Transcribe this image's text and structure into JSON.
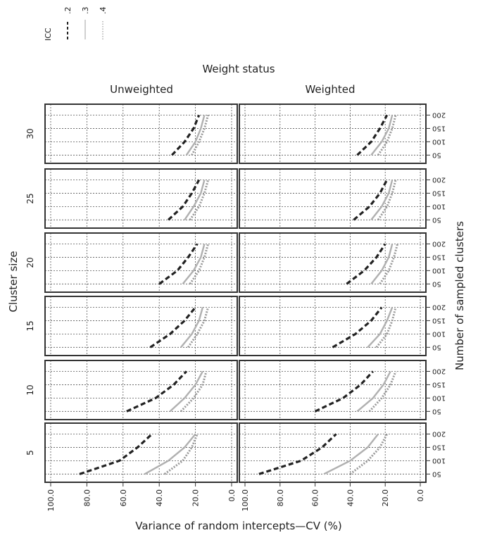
{
  "chart_data": {
    "type": "line",
    "title": "Weight status",
    "xlabel": "Variance of random intercepts—CV (%)",
    "ylabel": "Cluster size",
    "ylabel_right": "Number of sampled clusters",
    "x_ticks": [
      "100.0",
      "80.0",
      "60.0",
      "40.0",
      "20.0",
      "0.0"
    ],
    "xlim": [
      100,
      0
    ],
    "y_ticks": [
      "50",
      "100",
      "150",
      "200"
    ],
    "ylim": [
      35,
      225
    ],
    "grid": true,
    "legend": {
      "title": "ICC",
      "position": "top-left",
      "entries": [
        {
          "label": ".2",
          "style": "dashed",
          "color": "#222222"
        },
        {
          "label": ".3",
          "style": "solid",
          "color": "#b0b0b0"
        },
        {
          "label": ".4",
          "style": "dotted",
          "color": "#9a9a9a"
        }
      ]
    },
    "columns": [
      "Unweighted",
      "Weighted"
    ],
    "rows": [
      "30",
      "25",
      "20",
      "15",
      "10",
      "5"
    ],
    "y": [
      50,
      100,
      150,
      200
    ],
    "panels": [
      {
        "row": "30",
        "column": "Unweighted",
        "series": [
          {
            "name": ".2",
            "x": [
              33,
              26,
              21,
              18
            ]
          },
          {
            "name": ".3",
            "x": [
              25,
              20,
              17,
              15
            ]
          },
          {
            "name": ".4",
            "x": [
              22,
              18,
              15,
              13
            ]
          }
        ]
      },
      {
        "row": "30",
        "column": "Weighted",
        "series": [
          {
            "name": ".2",
            "x": [
              36,
              28,
              23,
              19
            ]
          },
          {
            "name": ".3",
            "x": [
              28,
              22,
              18,
              16
            ]
          },
          {
            "name": ".4",
            "x": [
              24,
              19,
              16,
              14
            ]
          }
        ]
      },
      {
        "row": "25",
        "column": "Unweighted",
        "series": [
          {
            "name": ".2",
            "x": [
              35,
              27,
              22,
              18
            ]
          },
          {
            "name": ".3",
            "x": [
              26,
              21,
              17,
              15
            ]
          },
          {
            "name": ".4",
            "x": [
              23,
              18,
              15,
              13
            ]
          }
        ]
      },
      {
        "row": "25",
        "column": "Weighted",
        "series": [
          {
            "name": ".2",
            "x": [
              38,
              29,
              23,
              19
            ]
          },
          {
            "name": ".3",
            "x": [
              28,
              22,
              18,
              16
            ]
          },
          {
            "name": ".4",
            "x": [
              24,
              19,
              16,
              14
            ]
          }
        ]
      },
      {
        "row": "20",
        "column": "Unweighted",
        "series": [
          {
            "name": ".2",
            "x": [
              40,
              30,
              24,
              19
            ]
          },
          {
            "name": ".3",
            "x": [
              27,
              21,
              17,
              15
            ]
          },
          {
            "name": ".4",
            "x": [
              23,
              18,
              15,
              13
            ]
          }
        ]
      },
      {
        "row": "20",
        "column": "Weighted",
        "series": [
          {
            "name": ".2",
            "x": [
              42,
              32,
              25,
              20
            ]
          },
          {
            "name": ".3",
            "x": [
              28,
              22,
              18,
              16
            ]
          },
          {
            "name": ".4",
            "x": [
              23,
              18,
              15,
              13
            ]
          }
        ]
      },
      {
        "row": "15",
        "column": "Unweighted",
        "series": [
          {
            "name": ".2",
            "x": [
              45,
              34,
              26,
              20
            ]
          },
          {
            "name": ".3",
            "x": [
              28,
              22,
              18,
              16
            ]
          },
          {
            "name": ".4",
            "x": [
              24,
              19,
              15,
              13
            ]
          }
        ]
      },
      {
        "row": "15",
        "column": "Weighted",
        "series": [
          {
            "name": ".2",
            "x": [
              50,
              37,
              28,
              22
            ]
          },
          {
            "name": ".3",
            "x": [
              30,
              23,
              19,
              16
            ]
          },
          {
            "name": ".4",
            "x": [
              25,
              19,
              16,
              14
            ]
          }
        ]
      },
      {
        "row": "10",
        "column": "Unweighted",
        "series": [
          {
            "name": ".2",
            "x": [
              58,
              42,
              32,
              25
            ]
          },
          {
            "name": ".3",
            "x": [
              34,
              26,
              20,
              16
            ]
          },
          {
            "name": ".4",
            "x": [
              28,
              21,
              16,
              14
            ]
          }
        ]
      },
      {
        "row": "10",
        "column": "Weighted",
        "series": [
          {
            "name": ".2",
            "x": [
              60,
              44,
              34,
              27
            ]
          },
          {
            "name": ".3",
            "x": [
              36,
              27,
              21,
              17
            ]
          },
          {
            "name": ".4",
            "x": [
              29,
              22,
              17,
              14
            ]
          }
        ]
      },
      {
        "row": "5",
        "column": "Unweighted",
        "series": [
          {
            "name": ".2",
            "x": [
              84,
              62,
              52,
              44
            ]
          },
          {
            "name": ".3",
            "x": [
              48,
              35,
              26,
              20
            ]
          },
          {
            "name": ".4",
            "x": [
              37,
              27,
              22,
              19
            ]
          }
        ]
      },
      {
        "row": "5",
        "column": "Weighted",
        "series": [
          {
            "name": ".2",
            "x": [
              92,
              68,
              56,
              48
            ]
          },
          {
            "name": ".3",
            "x": [
              55,
              40,
              30,
              24
            ]
          },
          {
            "name": ".4",
            "x": [
              40,
              30,
              23,
              19
            ]
          }
        ]
      }
    ]
  }
}
